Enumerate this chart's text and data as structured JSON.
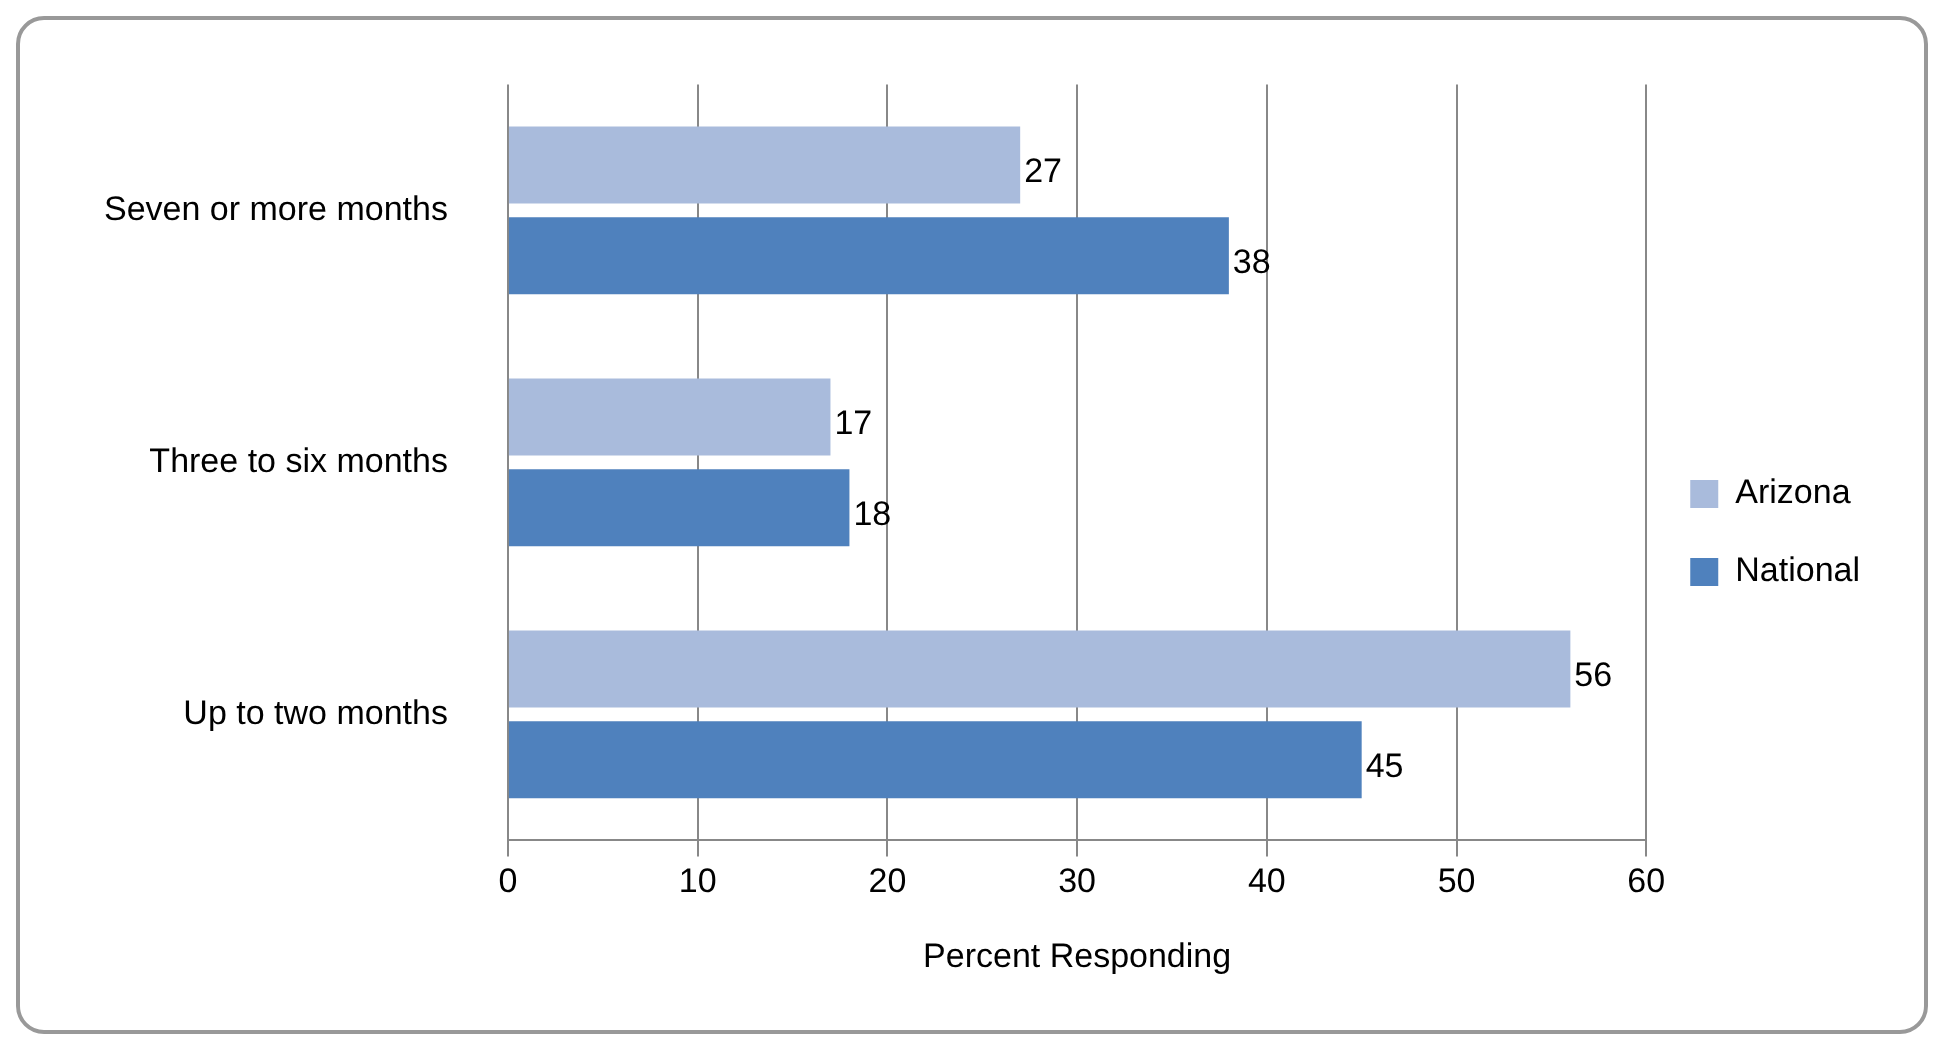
{
  "chart_data": {
    "type": "bar",
    "orientation": "horizontal",
    "categories": [
      "Seven or more months",
      "Three to six months",
      "Up to two months"
    ],
    "series": [
      {
        "name": "Arizona",
        "color": "#a9bbdc",
        "values": [
          27,
          17,
          56
        ]
      },
      {
        "name": "National",
        "color": "#4f81bd",
        "values": [
          38,
          18,
          45
        ]
      }
    ],
    "xlim": [
      0,
      60
    ],
    "xticks": [
      0,
      10,
      20,
      30,
      40,
      50,
      60
    ],
    "xlabel": "Percent Responding",
    "grid": "x",
    "legend": "right",
    "data_labels": true
  }
}
